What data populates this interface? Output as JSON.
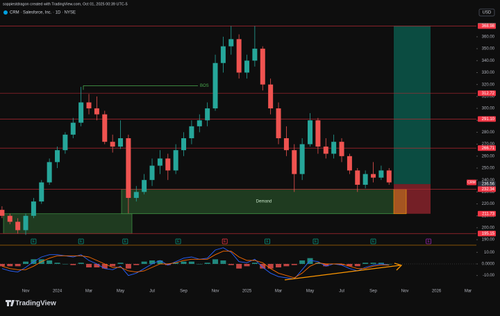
{
  "header": {
    "credit": "soppiestdragon created with TradingView.com, Oct 01, 2025 00:39 UTC-5",
    "symbol": "CRM · Salesforce, Inc. · 1D · NYSE",
    "currency": "USD",
    "brand": "TradingView"
  },
  "chart_data": {
    "type": "candlestick",
    "categories": [
      null,
      null,
      null,
      "Nov",
      null,
      null,
      null,
      "2024",
      null,
      null,
      null,
      "Mar",
      null,
      null,
      null,
      "May",
      null,
      null,
      null,
      "Jul",
      null,
      null,
      null,
      "Sep",
      null,
      null,
      null,
      "Nov",
      null,
      null,
      null,
      "2025",
      null,
      null,
      null,
      "Mar",
      null,
      null,
      null,
      "May",
      null,
      null,
      null,
      "Jul",
      null,
      null,
      null,
      "Sep",
      null,
      null,
      null,
      "Nov",
      null,
      null,
      null,
      "2026",
      null,
      null,
      null,
      "Mar"
    ],
    "open": [
      215,
      210,
      205,
      198,
      210,
      222,
      238,
      255,
      265,
      278,
      288,
      305,
      300,
      295,
      272,
      268,
      275,
      225,
      230,
      240,
      252,
      258,
      248,
      265,
      275,
      285,
      290,
      300,
      338,
      352,
      358,
      330,
      340,
      350,
      320,
      300,
      275,
      265,
      245,
      270,
      290,
      268,
      262,
      272,
      260,
      248,
      236,
      245,
      242,
      248,
      null,
      null,
      null,
      null,
      null,
      null,
      null,
      null,
      null,
      null
    ],
    "high": [
      218,
      212,
      208,
      212,
      225,
      240,
      258,
      268,
      280,
      292,
      318,
      312,
      310,
      298,
      278,
      290,
      278,
      235,
      245,
      258,
      265,
      262,
      270,
      280,
      290,
      295,
      305,
      345,
      360,
      369,
      362,
      345,
      369,
      352,
      325,
      305,
      285,
      270,
      275,
      296,
      292,
      275,
      278,
      275,
      262,
      250,
      248,
      255,
      252,
      250,
      null,
      null,
      null,
      null,
      null,
      null,
      null,
      null,
      null,
      null
    ],
    "low": [
      208,
      203,
      195,
      194,
      208,
      220,
      236,
      250,
      262,
      275,
      285,
      295,
      290,
      270,
      263,
      266,
      212,
      222,
      228,
      235,
      245,
      240,
      245,
      260,
      270,
      280,
      285,
      298,
      330,
      345,
      325,
      325,
      335,
      315,
      295,
      270,
      260,
      230,
      240,
      268,
      262,
      258,
      258,
      255,
      245,
      230,
      233,
      238,
      240,
      236,
      null,
      null,
      null,
      null,
      null,
      null,
      null,
      null,
      null,
      null
    ],
    "close": [
      210,
      205,
      198,
      210,
      222,
      238,
      255,
      265,
      278,
      288,
      305,
      300,
      295,
      272,
      268,
      275,
      225,
      230,
      240,
      252,
      258,
      248,
      265,
      275,
      285,
      290,
      300,
      338,
      352,
      358,
      330,
      340,
      350,
      320,
      300,
      275,
      265,
      245,
      270,
      290,
      268,
      262,
      272,
      260,
      248,
      236,
      245,
      242,
      248,
      238,
      null,
      null,
      null,
      null,
      null,
      null,
      null,
      null,
      null,
      null
    ],
    "up_color": "#26a69a",
    "down_color": "#ef5350",
    "ylim": [
      186,
      374.5
    ],
    "yticks": [
      {
        "value": 190,
        "label": "190.00"
      },
      {
        "value": 200,
        "label": "200.00"
      },
      {
        "value": 210,
        "label": "210.00"
      },
      {
        "value": 220,
        "label": "220.00"
      },
      {
        "value": 230,
        "label": "230.00"
      },
      {
        "value": 240,
        "label": "240.00"
      },
      {
        "value": 250,
        "label": "250.00"
      },
      {
        "value": 260,
        "label": "260.00"
      },
      {
        "value": 270,
        "label": "270.00"
      },
      {
        "value": 280,
        "label": "280.00"
      },
      {
        "value": 290,
        "label": "290.00"
      },
      {
        "value": 300,
        "label": "300.00"
      },
      {
        "value": 310,
        "label": "310.00"
      },
      {
        "value": 320,
        "label": "320.00"
      },
      {
        "value": 330,
        "label": "330.00"
      },
      {
        "value": 340,
        "label": "340.00"
      },
      {
        "value": 350,
        "label": "350.00"
      },
      {
        "value": 360,
        "label": "360.00"
      }
    ],
    "grid": false,
    "levels": [
      {
        "value": 369.26,
        "label": "369.26",
        "color": "#089981",
        "line": false
      },
      {
        "value": 368.98,
        "label": "368.98",
        "color": "#f23645",
        "line": true
      },
      {
        "value": 312.72,
        "label": "312.72",
        "color": "#f23645",
        "line": true
      },
      {
        "value": 291.1,
        "label": "291.10",
        "color": "#f23645",
        "line": true
      },
      {
        "value": 266.71,
        "label": "266.71",
        "color": "#f23645",
        "line": true
      },
      {
        "value": 236.56,
        "label": "236.56",
        "color": "#2a2e39",
        "line": false
      },
      {
        "value": 232.34,
        "label": "232.34",
        "color": "#f23645",
        "line": true
      },
      {
        "value": 211.73,
        "label": "211.73",
        "color": "#f23645",
        "line": false
      },
      {
        "value": 195.15,
        "label": "195.15",
        "color": "#f23645",
        "line": true
      }
    ],
    "symbol_badge": {
      "label": "CRM",
      "color": "#f23645"
    },
    "zones": [
      {
        "low": 211.73,
        "high": 232.34,
        "label": "Demand"
      },
      {
        "low": 195.15,
        "high": 211.73
      }
    ],
    "bos": {
      "label": "BOS",
      "value": 319
    },
    "position": {
      "target": 369.26,
      "entry": 236.56,
      "stop": 211.73
    },
    "events": [
      {
        "label": "E",
        "at": 4,
        "color": "#089981"
      },
      {
        "label": "E",
        "at": 10,
        "color": "#089981"
      },
      {
        "label": "E",
        "at": 15.6,
        "color": "#089981"
      },
      {
        "label": "E",
        "at": 22.3,
        "color": "#089981"
      },
      {
        "label": "E",
        "at": 28.2,
        "color": "#f23645"
      },
      {
        "label": "E",
        "at": 33.6,
        "color": "#089981"
      },
      {
        "label": "E",
        "at": 39.7,
        "color": "#089981"
      },
      {
        "label": "E",
        "at": 47,
        "color": "#089981"
      },
      {
        "label": "E",
        "at": 54,
        "color": "#9c27b0"
      }
    ],
    "oscillator": {
      "ylim": [
        -18,
        15
      ],
      "yticks": [
        {
          "value": 10,
          "label": "10.00"
        },
        {
          "value": 0,
          "label": "0.0000"
        },
        {
          "value": -10,
          "label": "-10.00"
        }
      ],
      "histogram": [
        -2,
        -2,
        -2,
        2,
        4,
        4,
        3,
        1,
        0,
        -1,
        1,
        -3,
        -3,
        -4,
        -2,
        1,
        -4,
        -1,
        2,
        3,
        3,
        -1,
        1,
        2,
        2,
        0,
        1,
        4,
        3,
        -1,
        -4,
        -2,
        1,
        -4,
        -4,
        -3,
        -2,
        -1,
        3,
        5,
        1,
        -2,
        0,
        -1,
        -2,
        -2,
        1,
        1,
        1,
        0,
        null,
        null,
        null,
        null,
        null,
        null,
        null,
        null,
        null,
        null
      ],
      "lines": [
        {
          "color": "#2962ff",
          "values": [
            -4,
            -6,
            -7,
            -3,
            2,
            6,
            8,
            8,
            7,
            6,
            8,
            3,
            0,
            -4,
            -5,
            -2,
            -10,
            -8,
            -4,
            0,
            3,
            -1,
            2,
            5,
            6,
            4,
            5,
            12,
            14,
            10,
            2,
            1,
            4,
            -3,
            -8,
            -11,
            -12,
            -13,
            -5,
            3,
            2,
            -2,
            0,
            -1,
            -4,
            -6,
            -3,
            -1,
            0,
            -1,
            null,
            null,
            null,
            null,
            null,
            null,
            null,
            null,
            null,
            null
          ]
        },
        {
          "color": "#ff6d00",
          "values": [
            -2,
            -4,
            -5,
            -5,
            -2,
            2,
            5,
            7,
            7,
            7,
            7,
            6,
            3,
            0,
            -3,
            -3,
            -6,
            -7,
            -6,
            -3,
            0,
            0,
            1,
            3,
            4,
            4,
            4,
            8,
            11,
            11,
            6,
            3,
            3,
            1,
            -4,
            -8,
            -10,
            -12,
            -8,
            -2,
            1,
            0,
            0,
            0,
            -2,
            -4,
            -4,
            -2,
            -1,
            -1,
            null,
            null,
            null,
            null,
            null,
            null,
            null,
            null,
            null,
            null
          ]
        }
      ]
    }
  }
}
